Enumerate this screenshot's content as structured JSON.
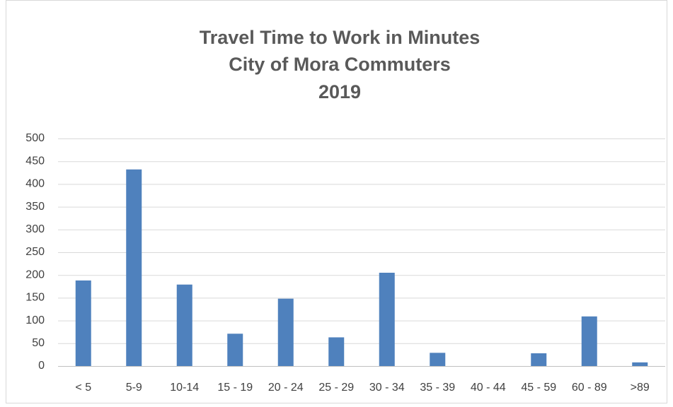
{
  "chart_data": {
    "type": "bar",
    "title": [
      "Travel Time to Work in Minutes",
      "City of Mora Commuters",
      "2019"
    ],
    "categories": [
      "< 5",
      "5-9",
      "10-14",
      "15 - 19",
      "20 - 24",
      "25 - 29",
      "30 - 34",
      "35 - 39",
      "40 - 44",
      "45 - 59",
      "60 - 89",
      ">89"
    ],
    "values": [
      188,
      432,
      179,
      71,
      148,
      63,
      205,
      29,
      0,
      28,
      109,
      8
    ],
    "color": "#4f81bd",
    "ylim": [
      0,
      500
    ],
    "yticks": [
      0,
      50,
      100,
      150,
      200,
      250,
      300,
      350,
      400,
      450,
      500
    ],
    "grid": true
  }
}
